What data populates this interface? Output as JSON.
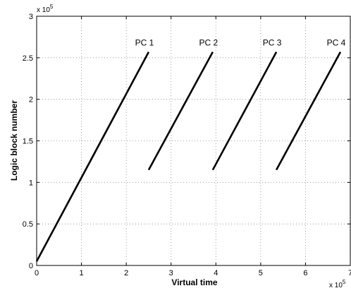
{
  "chart_data": {
    "type": "line",
    "xlabel": "Virtual time",
    "ylabel": "Logic block number",
    "x_multiplier": {
      "base": "x 10",
      "exp": "5"
    },
    "y_multiplier": {
      "base": "x 10",
      "exp": "5"
    },
    "xlim": [
      0,
      700000
    ],
    "ylim": [
      0,
      300000
    ],
    "xticks": [
      0,
      100000,
      200000,
      300000,
      400000,
      500000,
      600000,
      700000
    ],
    "xtick_labels": [
      "0",
      "1",
      "2",
      "3",
      "4",
      "5",
      "6",
      "7"
    ],
    "yticks": [
      0,
      50000,
      100000,
      150000,
      200000,
      250000,
      300000
    ],
    "ytick_labels": [
      "0",
      "0.5",
      "1",
      "1.5",
      "2",
      "2.5",
      "3"
    ],
    "grid": true,
    "series": [
      {
        "name": "PC 1",
        "x": [
          0,
          250000
        ],
        "y": [
          5000,
          257000
        ]
      },
      {
        "name": "PC 2",
        "x": [
          250000,
          393000
        ],
        "y": [
          115000,
          257000
        ]
      },
      {
        "name": "PC 3",
        "x": [
          393000,
          535000
        ],
        "y": [
          115000,
          257000
        ]
      },
      {
        "name": "PC 4",
        "x": [
          535000,
          678000
        ],
        "y": [
          115000,
          257000
        ]
      }
    ],
    "line_color": "#000000"
  }
}
